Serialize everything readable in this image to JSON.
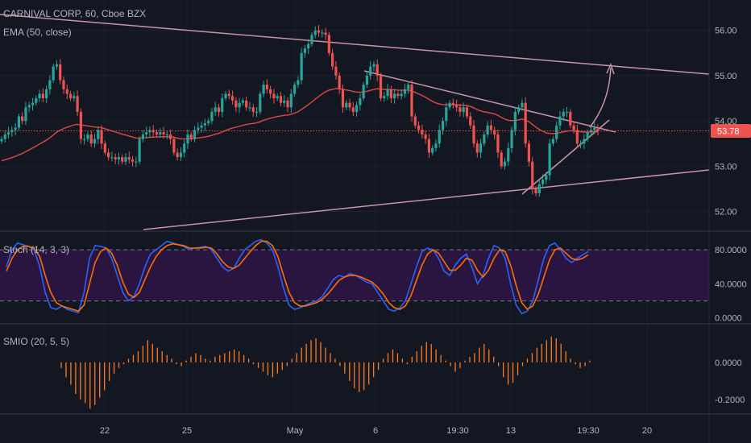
{
  "header": {
    "symbol": "CARNIVAL CORP, 60, Cboe BZX",
    "ema": "EMA (50, close)"
  },
  "price_badge": "53.78",
  "colors": {
    "background": "#131722",
    "up": "#26a69a",
    "down": "#ef5350",
    "ema": "#e04848",
    "trendline": "#c894a8",
    "stoch_k": "#2962ff",
    "stoch_d": "#ff6d00",
    "smio": "#ff7a1a",
    "stoch_band": "#2a1540",
    "grid": "#1e222d"
  },
  "chart_data": [
    {
      "type": "candlestick",
      "title": "CARNIVAL CORP, 60, Cboe BZX",
      "ylim": [
        51.6,
        56.6
      ],
      "yticks": [
        "56.00",
        "55.00",
        "54.00",
        "53.00",
        "52.00"
      ],
      "xticks": [
        "22",
        "25",
        "May",
        "6",
        "19:30",
        "13",
        "19:30",
        "20"
      ],
      "last_price": 53.78,
      "close": [
        53.6,
        53.7,
        53.75,
        53.8,
        53.85,
        54.1,
        54.0,
        54.3,
        54.35,
        54.4,
        54.5,
        54.6,
        54.5,
        54.7,
        54.9,
        55.2,
        55.25,
        54.9,
        54.7,
        54.6,
        54.5,
        54.55,
        54.2,
        53.6,
        53.6,
        53.7,
        53.5,
        53.6,
        53.8,
        53.5,
        53.3,
        53.2,
        53.2,
        53.15,
        53.2,
        53.1,
        53.2,
        53.15,
        53.1,
        53.1,
        53.6,
        53.7,
        53.75,
        53.8,
        53.75,
        53.7,
        53.75,
        53.7,
        53.7,
        53.6,
        53.3,
        53.2,
        53.3,
        53.5,
        53.7,
        53.6,
        53.8,
        53.85,
        53.9,
        53.95,
        54.0,
        54.2,
        54.3,
        54.2,
        54.5,
        54.6,
        54.55,
        54.45,
        54.3,
        54.4,
        54.45,
        54.3,
        54.3,
        54.2,
        54.2,
        54.6,
        54.8,
        54.7,
        54.6,
        54.5,
        54.55,
        54.4,
        54.45,
        54.3,
        54.6,
        54.8,
        54.9,
        55.5,
        55.6,
        55.7,
        55.9,
        56.0,
        55.95,
        55.95,
        55.9,
        55.5,
        55.2,
        55.0,
        54.7,
        54.3,
        54.4,
        54.3,
        54.2,
        54.35,
        54.5,
        54.8,
        55.0,
        55.2,
        55.25,
        55.0,
        54.5,
        54.55,
        54.7,
        54.5,
        54.6,
        54.55,
        54.6,
        54.7,
        54.8,
        54.1,
        53.9,
        53.8,
        53.7,
        53.6,
        53.3,
        53.4,
        53.5,
        53.8,
        54.0,
        54.3,
        54.4,
        54.35,
        54.3,
        54.2,
        54.3,
        54.1,
        53.9,
        53.5,
        53.3,
        53.5,
        53.7,
        53.9,
        53.8,
        53.7,
        53.3,
        53.0,
        53.1,
        53.4,
        53.8,
        54.2,
        54.3,
        54.4,
        53.5,
        53.1,
        52.5,
        52.4,
        52.6,
        52.7,
        52.8,
        53.5,
        53.6,
        53.9,
        54.1,
        54.2,
        54.2,
        53.9,
        53.8,
        53.5,
        53.5,
        53.6,
        53.75,
        53.8,
        53.85,
        53.78
      ]
    },
    {
      "type": "line",
      "title": "EMA (50, close)",
      "ylim": [
        51.6,
        56.6
      ],
      "start": 53.1
    },
    {
      "type": "line",
      "title": "Stoch (14, 3, 3)",
      "ylim": [
        -5,
        100
      ],
      "yticks": [
        "80.0000",
        "40.0000",
        "0.0000"
      ],
      "band": [
        20,
        80
      ],
      "series": [
        {
          "name": "%K",
          "values": [
            60,
            80,
            88,
            86,
            84,
            80,
            60,
            30,
            12,
            10,
            14,
            10,
            8,
            6,
            30,
            70,
            85,
            84,
            82,
            70,
            50,
            30,
            20,
            25,
            40,
            60,
            75,
            80,
            85,
            90,
            88,
            86,
            84,
            80,
            82,
            83,
            84,
            80,
            70,
            60,
            55,
            58,
            70,
            80,
            85,
            90,
            92,
            88,
            80,
            60,
            35,
            15,
            10,
            12,
            15,
            18,
            20,
            25,
            35,
            45,
            50,
            48,
            52,
            50,
            46,
            42,
            40,
            30,
            20,
            10,
            8,
            12,
            20,
            40,
            60,
            78,
            82,
            80,
            70,
            55,
            50,
            62,
            70,
            75,
            60,
            40,
            50,
            70,
            85,
            82,
            70,
            40,
            15,
            5,
            8,
            20,
            45,
            70,
            85,
            88,
            80,
            70,
            65,
            70,
            74,
            78
          ]
        },
        {
          "name": "%D",
          "values": [
            55,
            70,
            80,
            84,
            84,
            82,
            72,
            50,
            30,
            18,
            14,
            12,
            10,
            8,
            15,
            40,
            65,
            78,
            82,
            76,
            62,
            42,
            28,
            24,
            30,
            45,
            60,
            72,
            80,
            85,
            87,
            86,
            85,
            82,
            82,
            82,
            83,
            82,
            75,
            66,
            60,
            58,
            62,
            70,
            78,
            85,
            90,
            90,
            85,
            72,
            50,
            30,
            18,
            14,
            14,
            16,
            18,
            22,
            28,
            36,
            44,
            48,
            50,
            50,
            48,
            45,
            42,
            36,
            28,
            18,
            12,
            10,
            14,
            26,
            44,
            62,
            75,
            80,
            76,
            66,
            56,
            56,
            62,
            70,
            68,
            56,
            48,
            56,
            70,
            80,
            78,
            62,
            38,
            18,
            10,
            14,
            28,
            48,
            68,
            80,
            82,
            76,
            70,
            68,
            70,
            74
          ]
        }
      ]
    },
    {
      "type": "bar",
      "title": "SMIO (20, 5, 5)",
      "ylim": [
        -0.27,
        0.2
      ],
      "yticks": [
        "0.0000",
        "-0.2000"
      ],
      "values": [
        -0.03,
        -0.08,
        -0.12,
        -0.17,
        -0.2,
        -0.22,
        -0.25,
        -0.23,
        -0.19,
        -0.15,
        -0.1,
        -0.06,
        -0.03,
        -0.01,
        0.02,
        0.04,
        0.06,
        0.09,
        0.12,
        0.1,
        0.08,
        0.06,
        0.04,
        0.02,
        -0.01,
        -0.02,
        0.01,
        0.03,
        0.05,
        0.04,
        0.02,
        0.01,
        0.03,
        0.04,
        0.05,
        0.06,
        0.07,
        0.06,
        0.04,
        0.02,
        -0.01,
        -0.03,
        -0.05,
        -0.07,
        -0.08,
        -0.06,
        -0.04,
        -0.02,
        0.02,
        0.05,
        0.08,
        0.1,
        0.12,
        0.13,
        0.11,
        0.08,
        0.05,
        0.02,
        -0.02,
        -0.06,
        -0.1,
        -0.14,
        -0.16,
        -0.15,
        -0.12,
        -0.08,
        -0.04,
        0.02,
        0.05,
        0.07,
        0.05,
        0.02,
        -0.01,
        0.03,
        0.06,
        0.09,
        0.11,
        0.1,
        0.07,
        0.04,
        0.01,
        -0.02,
        -0.05,
        -0.03,
        0.01,
        0.03,
        0.05,
        0.08,
        0.1,
        0.07,
        0.03,
        -0.02,
        -0.08,
        -0.12,
        -0.11,
        -0.07,
        -0.02,
        0.02,
        0.05,
        0.08,
        0.1,
        0.12,
        0.14,
        0.13,
        0.1,
        0.06,
        0.02,
        -0.01,
        -0.03,
        -0.02,
        0.01
      ]
    }
  ]
}
